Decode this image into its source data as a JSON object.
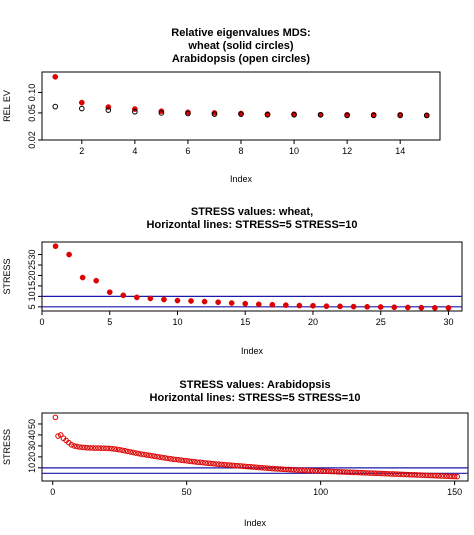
{
  "chart_data": [
    {
      "type": "scatter",
      "title": [
        "Relative eigenvalues MDS:",
        "wheat (solid circles)",
        "Arabidopsis (open circles)"
      ],
      "xlabel": "Index",
      "ylabel": "REL EV",
      "xlim": [
        0.5,
        15.5
      ],
      "ylim": [
        0.02,
        0.2
      ],
      "y_scale": "log",
      "xticks": [
        2,
        4,
        6,
        8,
        10,
        12,
        14
      ],
      "yticks": [
        0.02,
        0.05,
        0.1
      ],
      "ytick_labels": [
        "0.02",
        "0.05",
        "0.10"
      ],
      "series": [
        {
          "style": "solid",
          "color": "#dd0000",
          "x": [
            1,
            2,
            3,
            4,
            5,
            6,
            7,
            8,
            9,
            10,
            11,
            12,
            13,
            14,
            15
          ],
          "values": [
            0.17,
            0.071,
            0.061,
            0.057,
            0.053,
            0.051,
            0.05,
            0.049,
            0.048,
            0.048,
            0.047,
            0.047,
            0.047,
            0.047,
            0.046
          ]
        },
        {
          "style": "open",
          "color": "#000000",
          "x": [
            1,
            2,
            3,
            4,
            5,
            6,
            7,
            8,
            9,
            10,
            11,
            12,
            13,
            14,
            15
          ],
          "values": [
            0.062,
            0.058,
            0.055,
            0.052,
            0.05,
            0.049,
            0.048,
            0.048,
            0.047,
            0.047,
            0.047,
            0.046,
            0.046,
            0.046,
            0.046
          ]
        }
      ]
    },
    {
      "type": "scatter",
      "title": [
        "STRESS values: wheat,",
        "Horizontal lines: STRESS=5 STRESS=10"
      ],
      "xlabel": "Index",
      "ylabel": "STRESS",
      "xlim": [
        0,
        31
      ],
      "ylim": [
        3,
        36
      ],
      "xticks": [
        0,
        5,
        10,
        15,
        20,
        25,
        30
      ],
      "yticks": [
        5,
        10,
        15,
        20,
        25,
        30
      ],
      "hlines": [
        5,
        10
      ],
      "hline_color": "#1a1aaa",
      "series": [
        {
          "style": "solid",
          "color": "#dd0000",
          "x": [
            1,
            2,
            3,
            4,
            5,
            6,
            7,
            8,
            9,
            10,
            11,
            12,
            13,
            14,
            15,
            16,
            17,
            18,
            19,
            20,
            21,
            22,
            23,
            24,
            25,
            26,
            27,
            28,
            29,
            30
          ],
          "values": [
            34,
            30,
            19,
            17.5,
            12,
            10.5,
            9.5,
            9,
            8.5,
            8,
            7.8,
            7.5,
            7.2,
            6.8,
            6.5,
            6.2,
            6,
            5.8,
            5.6,
            5.5,
            5.3,
            5.2,
            5.1,
            5,
            4.9,
            4.8,
            4.7,
            4.6,
            4.5,
            4.5
          ]
        }
      ]
    },
    {
      "type": "scatter",
      "title": [
        "STRESS values: Arabidopsis",
        "Horizontal lines: STRESS=5 STRESS=10"
      ],
      "xlabel": "Index",
      "ylabel": "STRESS",
      "xlim": [
        -4,
        155
      ],
      "ylim": [
        -2,
        60
      ],
      "xticks": [
        0,
        50,
        100,
        150
      ],
      "yticks": [
        10,
        20,
        30,
        40,
        50
      ],
      "hlines": [
        5,
        10
      ],
      "hline_color": "#1a1aaa",
      "series": [
        {
          "style": "open",
          "color": "#dd0000",
          "x_start": 1,
          "x_step": 1,
          "values": [
            56,
            39,
            40,
            37,
            35,
            33,
            31,
            30,
            29.5,
            29,
            28.7,
            28.5,
            28.3,
            28.2,
            28.1,
            28,
            28,
            27.9,
            27.9,
            27.8,
            27.7,
            27.5,
            27.2,
            26.9,
            26.5,
            26,
            25.5,
            25,
            24.5,
            24,
            23.5,
            23,
            22.6,
            22.2,
            21.8,
            21.4,
            21,
            20.6,
            20.2,
            19.8,
            19.4,
            19,
            18.6,
            18.2,
            17.9,
            17.6,
            17.3,
            17,
            16.7,
            16.4,
            16.1,
            15.8,
            15.5,
            15.2,
            15,
            14.7,
            14.5,
            14.2,
            14,
            13.8,
            13.5,
            13.3,
            13.1,
            12.9,
            12.7,
            12.5,
            12.3,
            12.1,
            11.9,
            11.7,
            11.5,
            11.3,
            11.1,
            10.9,
            10.7,
            10.5,
            10.3,
            10.1,
            9.9,
            9.7,
            9.5,
            9.3,
            9.2,
            9,
            8.9,
            8.7,
            8.6,
            8.4,
            8.3,
            8.2,
            8,
            7.9,
            7.8,
            7.7,
            7.6,
            7.5,
            7.4,
            7.3,
            7.2,
            7.1,
            7,
            6.9,
            6.8,
            6.7,
            6.6,
            6.5,
            6.4,
            6.3,
            6.2,
            6.1,
            6,
            5.9,
            5.8,
            5.7,
            5.6,
            5.5,
            5.4,
            5.3,
            5.2,
            5.1,
            5,
            4.9,
            4.8,
            4.7,
            4.6,
            4.5,
            4.4,
            4.3,
            4.2,
            4.1,
            4,
            3.9,
            3.8,
            3.7,
            3.6,
            3.5,
            3.4,
            3.3,
            3.2,
            3.1,
            3,
            2.9,
            2.8,
            2.7,
            2.6,
            2.5,
            2.4,
            2.3,
            2.2,
            2.1,
            2.0
          ]
        }
      ]
    }
  ]
}
